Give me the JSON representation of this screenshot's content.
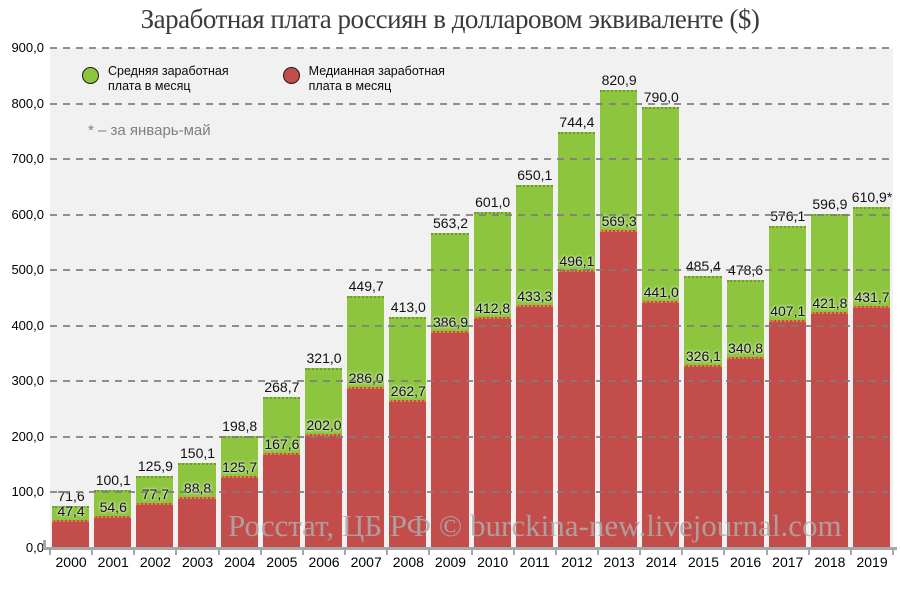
{
  "title": "Заработная плата россиян в долларовом эквиваленте ($)",
  "note": "* – за январь-май",
  "watermark": "Росстат, ЦБ РФ © burckina-new.livejournal.com",
  "legend": [
    {
      "line1": "Средняя заработная",
      "line2": "плата в месяц",
      "color": "#8dc63e"
    },
    {
      "line1": "Медианная заработная",
      "line2": "плата в месяц",
      "color": "#c24d4a"
    }
  ],
  "colors": {
    "average_bar": "#8dc63e",
    "median_bar": "#c24d4a",
    "plot_background": "#f1f1f1",
    "gridline": "#7d7d7d",
    "axis": "#a6a6a6"
  },
  "y_axis": {
    "ticks": [
      {
        "value": 900,
        "label": "900,0"
      },
      {
        "value": 800,
        "label": "800,0"
      },
      {
        "value": 700,
        "label": "700,0"
      },
      {
        "value": 600,
        "label": "600,0"
      },
      {
        "value": 500,
        "label": "500,0"
      },
      {
        "value": 400,
        "label": "400,0"
      },
      {
        "value": 300,
        "label": "300,0"
      },
      {
        "value": 200,
        "label": "200,0"
      },
      {
        "value": 100,
        "label": "100,0"
      },
      {
        "value": 0,
        "label": "0,0"
      }
    ]
  },
  "chart_data": {
    "type": "bar",
    "subtype": "overlapped (median bar drawn in front of average bar)",
    "title": "Заработная плата россиян в долларовом эквиваленте ($)",
    "xlabel": "",
    "ylabel": "",
    "ylim": [
      0,
      900
    ],
    "grid": "horizontal dashed",
    "legend_position": "top-left inside plot",
    "categories": [
      "2000",
      "2001",
      "2002",
      "2003",
      "2004",
      "2005",
      "2006",
      "2007",
      "2008",
      "2009",
      "2010",
      "2011",
      "2012",
      "2013",
      "2014",
      "2015",
      "2016",
      "2017",
      "2018",
      "2019"
    ],
    "series": [
      {
        "name": "Средняя заработная плата в месяц",
        "color": "#8dc63e",
        "values": [
          71.6,
          100.1,
          125.9,
          150.1,
          198.8,
          268.7,
          321.0,
          449.7,
          413.0,
          563.2,
          601.0,
          650.1,
          744.4,
          820.9,
          790.0,
          485.4,
          478.6,
          576.1,
          596.9,
          610.9
        ],
        "labels": [
          "71,6",
          "100,1",
          "125,9",
          "150,1",
          "198,8",
          "268,7",
          "321,0",
          "449,7",
          "413,0",
          "563,2",
          "601,0",
          "650,1",
          "744,4",
          "820,9",
          "790,0",
          "485,4",
          "478,6",
          "576,1",
          "596,9",
          "610,9*"
        ]
      },
      {
        "name": "Медианная заработная плата в месяц",
        "color": "#c24d4a",
        "values": [
          47.4,
          54.6,
          77.7,
          88.8,
          125.7,
          167.6,
          202.0,
          286.0,
          262.7,
          386.9,
          412.8,
          433.3,
          496.1,
          569.3,
          441.0,
          326.1,
          340.8,
          407.1,
          421.8,
          431.7
        ],
        "labels": [
          "47,4",
          "54,6",
          "77,7",
          "88,8",
          "125,7",
          "167,6",
          "202,0",
          "286,0",
          "262,7",
          "386,9",
          "412,8",
          "433,3",
          "496,1",
          "569,3",
          "441,0",
          "326,1",
          "340,8",
          "407,1",
          "421,8",
          "431,7"
        ]
      }
    ]
  }
}
